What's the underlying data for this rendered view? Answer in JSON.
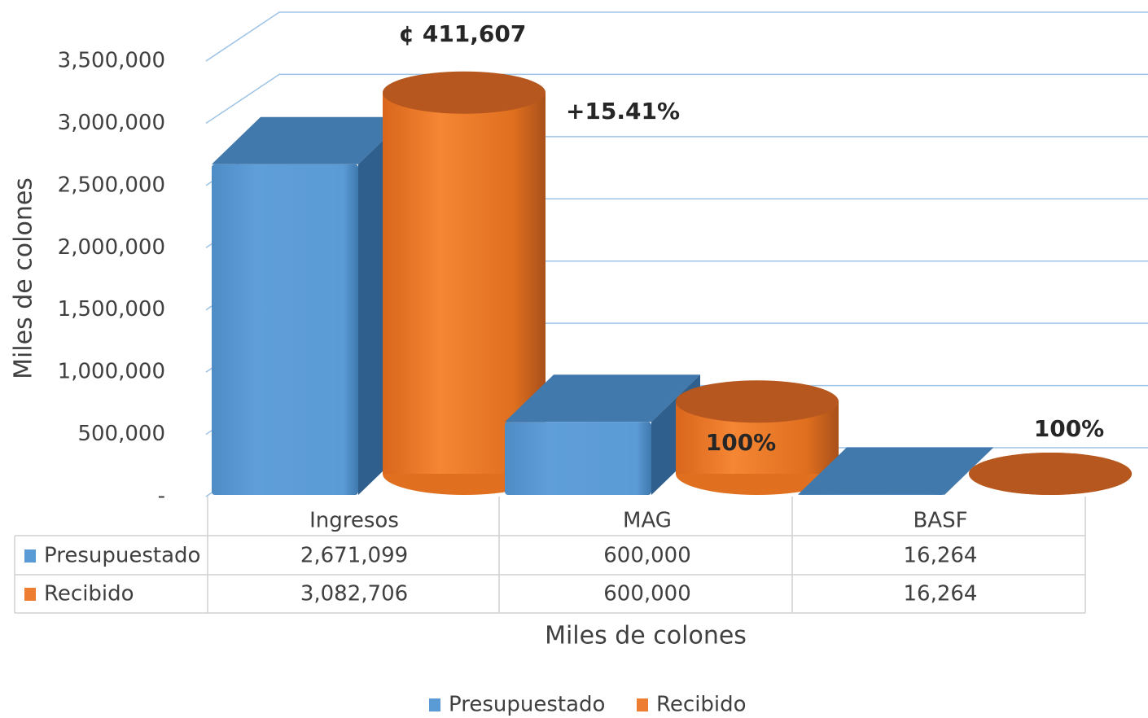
{
  "chart_data": {
    "type": "bar",
    "ylabel": "Miles de colones",
    "xlabel": "Miles de colones",
    "categories": [
      "Ingresos",
      "MAG",
      "BASF"
    ],
    "series": [
      {
        "name": "Presupuestado",
        "color": "#5b9bd5",
        "values": [
          2671099,
          600000,
          16264
        ],
        "value_labels": [
          "2,671,099",
          "600,000",
          "16,264"
        ]
      },
      {
        "name": "Recibido",
        "color": "#ed7d31",
        "values": [
          3082706,
          600000,
          16264
        ],
        "value_labels": [
          "3,082,706",
          "600,000",
          "16,264"
        ]
      }
    ],
    "ylim": [
      0,
      3500000
    ],
    "yticks": [
      {
        "value": 0,
        "label": "-"
      },
      {
        "value": 500000,
        "label": "500,000"
      },
      {
        "value": 1000000,
        "label": "1,000,000"
      },
      {
        "value": 1500000,
        "label": "1,500,000"
      },
      {
        "value": 2000000,
        "label": "2,000,000"
      },
      {
        "value": 2500000,
        "label": "2,500,000"
      },
      {
        "value": 3000000,
        "label": "3,000,000"
      },
      {
        "value": 3500000,
        "label": "3,500,000"
      }
    ],
    "grid": true,
    "legend": "bottom",
    "annotations": [
      "¢ 411,607",
      "+15.41%",
      "100%",
      "100%"
    ]
  }
}
